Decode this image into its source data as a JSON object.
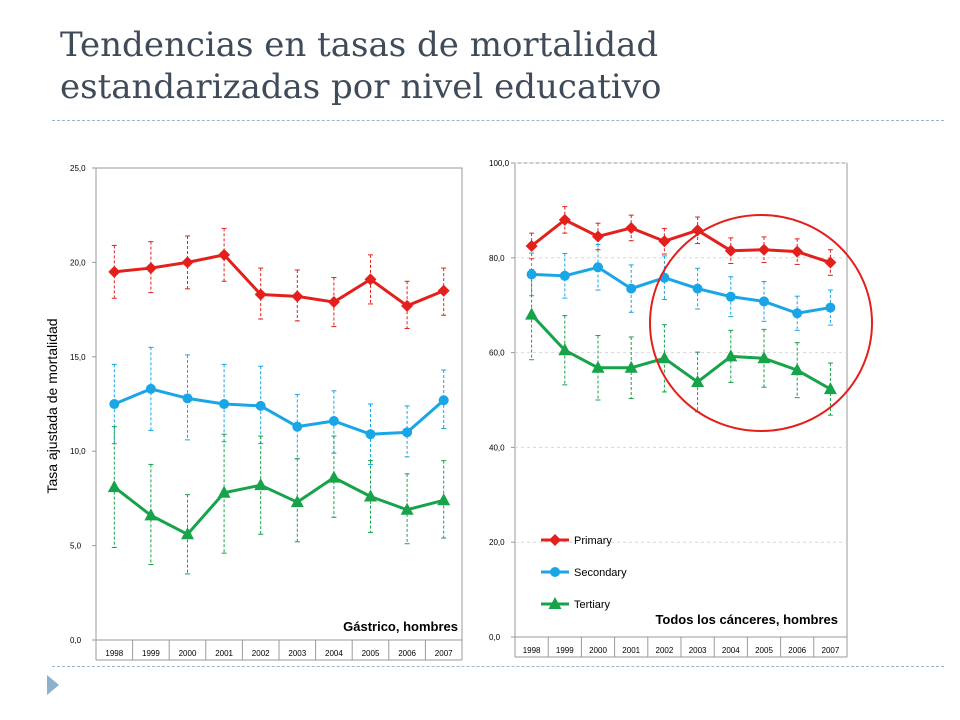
{
  "slide": {
    "title": "Tendencias en tasas de mortalidad estandarizadas por nivel educativo"
  },
  "colors": {
    "primary": "#e3201b",
    "secondary": "#1aa6e6",
    "tertiary": "#17a34a",
    "highlight_circle": "#e3201b",
    "title": "#404b5a",
    "nav_arrow": "#8fb0cc"
  },
  "icons": {
    "nav": "play-triangle-icon"
  },
  "chart_data": [
    {
      "type": "line",
      "caption": "Gástrico, hombres",
      "ylabel": "Tasa ajustada de mortalidad",
      "ylim": [
        0,
        25
      ],
      "yticks": [
        0,
        5,
        10,
        15,
        20,
        25
      ],
      "ytick_labels": [
        "0,0",
        "5,0",
        "10,0",
        "15,0",
        "20,0",
        "25,0"
      ],
      "grid": false,
      "categories": [
        "1998",
        "1999",
        "2000",
        "2001",
        "2002",
        "2003",
        "2004",
        "2005",
        "2006",
        "2007"
      ],
      "series": [
        {
          "key": "primary",
          "marker": "diamond",
          "values": [
            19.5,
            19.7,
            20.0,
            20.4,
            18.3,
            18.2,
            17.9,
            19.1,
            17.7,
            18.5
          ],
          "lower": [
            18.1,
            18.4,
            18.6,
            19.0,
            17.0,
            16.9,
            16.6,
            17.8,
            16.5,
            17.2
          ],
          "upper": [
            20.9,
            21.1,
            21.4,
            21.8,
            19.7,
            19.6,
            19.2,
            20.4,
            19.0,
            19.7
          ]
        },
        {
          "key": "secondary",
          "marker": "circle",
          "values": [
            12.5,
            13.3,
            12.8,
            12.5,
            12.4,
            11.3,
            11.6,
            10.9,
            11.0,
            12.7
          ],
          "lower": [
            10.4,
            11.1,
            10.6,
            10.5,
            10.4,
            9.6,
            9.9,
            9.3,
            9.7,
            11.2
          ],
          "upper": [
            14.6,
            15.5,
            15.1,
            14.6,
            14.5,
            13.0,
            13.2,
            12.5,
            12.4,
            14.3
          ]
        },
        {
          "key": "tertiary",
          "marker": "triangle",
          "values": [
            8.1,
            6.6,
            5.6,
            7.8,
            8.2,
            7.3,
            8.6,
            7.6,
            6.9,
            7.4
          ],
          "lower": [
            4.9,
            4.0,
            3.5,
            4.6,
            5.6,
            5.2,
            6.5,
            5.7,
            5.1,
            5.4
          ],
          "upper": [
            11.3,
            9.3,
            7.7,
            10.9,
            10.8,
            9.6,
            10.8,
            9.5,
            8.8,
            9.5
          ]
        }
      ]
    },
    {
      "type": "line",
      "caption": "Todos los cánceres, hombres",
      "ylim": [
        0,
        100
      ],
      "yticks": [
        0,
        20,
        40,
        60,
        80,
        100
      ],
      "ytick_labels": [
        "0,0",
        "20,0",
        "40,0",
        "60,0",
        "80,0",
        "100,0"
      ],
      "grid": true,
      "legend_position": "bottom-left",
      "categories": [
        "1998",
        "1999",
        "2000",
        "2001",
        "2002",
        "2003",
        "2004",
        "2005",
        "2006",
        "2007"
      ],
      "series": [
        {
          "key": "primary",
          "name": "Primary",
          "marker": "diamond",
          "values": [
            82.5,
            88.0,
            84.5,
            86.3,
            83.5,
            85.8,
            81.5,
            81.7,
            81.3,
            79.0
          ],
          "lower": [
            79.8,
            85.2,
            81.7,
            83.6,
            80.8,
            83.0,
            78.8,
            79.0,
            78.6,
            76.3
          ],
          "upper": [
            85.2,
            90.8,
            87.3,
            89.0,
            86.2,
            88.6,
            84.2,
            84.4,
            84.0,
            81.7
          ]
        },
        {
          "key": "secondary",
          "name": "Secondary",
          "marker": "circle",
          "values": [
            76.5,
            76.2,
            78.0,
            73.5,
            75.8,
            73.5,
            71.8,
            70.8,
            68.3,
            69.5
          ],
          "lower": [
            72.0,
            71.5,
            73.2,
            68.5,
            71.2,
            69.2,
            67.6,
            66.6,
            64.7,
            65.8
          ],
          "upper": [
            81.0,
            80.9,
            82.8,
            78.5,
            80.4,
            77.8,
            76.0,
            75.0,
            71.9,
            73.2
          ]
        },
        {
          "key": "tertiary",
          "name": "Tertiary",
          "marker": "triangle",
          "values": [
            68.0,
            60.5,
            56.8,
            56.8,
            58.8,
            53.8,
            59.2,
            58.8,
            56.3,
            52.3
          ],
          "lower": [
            58.5,
            53.2,
            50.0,
            50.3,
            51.7,
            47.5,
            53.7,
            52.7,
            50.5,
            46.8
          ],
          "upper": [
            77.5,
            67.8,
            63.6,
            63.3,
            65.9,
            60.1,
            64.7,
            64.9,
            62.1,
            57.8
          ]
        }
      ]
    }
  ]
}
